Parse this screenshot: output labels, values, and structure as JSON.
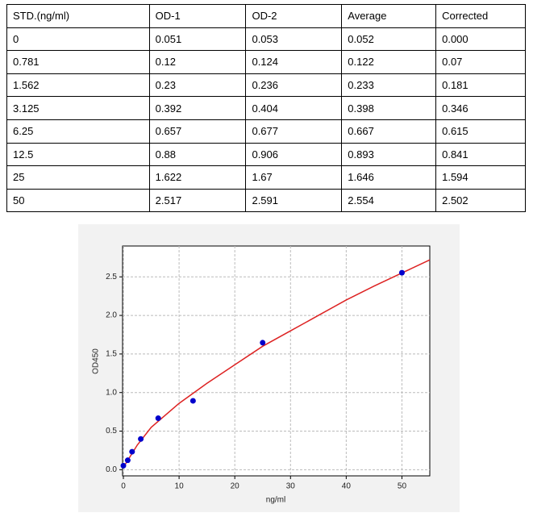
{
  "table": {
    "header": [
      "STD.(ng/ml)",
      "OD-1",
      "OD-2",
      "Average",
      "Corrected"
    ],
    "rows": [
      [
        "0",
        "0.051",
        "0.053",
        "0.052",
        "0.000"
      ],
      [
        "0.781",
        "0.12",
        "0.124",
        "0.122",
        "0.07"
      ],
      [
        "1.562",
        "0.23",
        "0.236",
        "0.233",
        "0.181"
      ],
      [
        "3.125",
        "0.392",
        "0.404",
        "0.398",
        "0.346"
      ],
      [
        "6.25",
        "0.657",
        "0.677",
        "0.667",
        "0.615"
      ],
      [
        "12.5",
        "0.88",
        "0.906",
        "0.893",
        "0.841"
      ],
      [
        "25",
        "1.622",
        "1.67",
        "1.646",
        "1.594"
      ],
      [
        "50",
        "2.517",
        "2.591",
        "2.554",
        "2.502"
      ]
    ]
  },
  "chart_data": {
    "type": "scatter",
    "xlabel": "ng/ml",
    "ylabel": "OD450",
    "xlim": [
      0,
      55
    ],
    "ylim": [
      -0.08,
      2.9
    ],
    "xticks": [
      0,
      10,
      20,
      30,
      40,
      50
    ],
    "yticks": [
      {
        "value": 0,
        "label": "0.0"
      },
      0.5,
      {
        "value": 1,
        "label": "1.0"
      },
      1.5,
      {
        "value": 2,
        "label": "2.0"
      },
      2.5
    ],
    "grid": true,
    "points": {
      "color": "#0000cc",
      "x": [
        0,
        0.781,
        1.562,
        3.125,
        6.25,
        12.5,
        25,
        50
      ],
      "values": [
        0.052,
        0.122,
        0.233,
        0.398,
        0.667,
        0.893,
        1.646,
        2.554
      ]
    },
    "fit": {
      "color": "#dd2222",
      "x": [
        0,
        2.5,
        5,
        10,
        15,
        20,
        25,
        30,
        35,
        40,
        45,
        50,
        55
      ],
      "values": [
        0.03,
        0.32,
        0.55,
        0.86,
        1.12,
        1.36,
        1.6,
        1.8,
        2.0,
        2.2,
        2.38,
        2.55,
        2.72
      ]
    }
  }
}
